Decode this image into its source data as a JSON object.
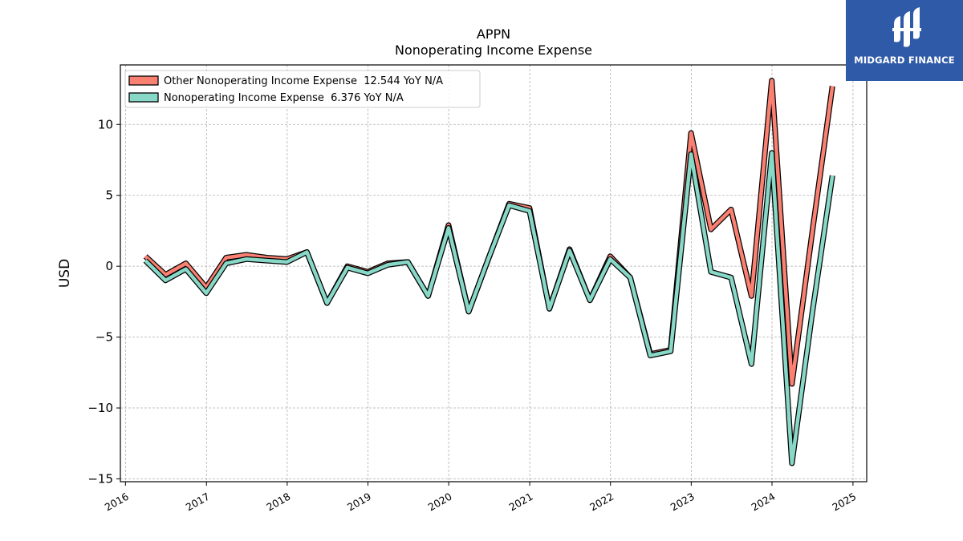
{
  "brand": {
    "name": "MIDGARD FINANCE",
    "bg_color": "#2f5aa8"
  },
  "chart_data": {
    "type": "line",
    "title": "APPN",
    "subtitle": "Nonoperating Income Expense",
    "xlabel": "",
    "ylabel": "USD",
    "ylim": [
      -15.2,
      14.2
    ],
    "xlim": [
      "2015-12-09",
      "2025-03-04"
    ],
    "y_ticks": [
      -15,
      -10,
      -5,
      0,
      5,
      10
    ],
    "y_tick_labels": [
      "−15",
      "−10",
      "−5",
      "0",
      "5",
      "10"
    ],
    "x_ticks": [
      "2016-01-01",
      "2017-01-01",
      "2018-01-01",
      "2019-01-01",
      "2020-01-01",
      "2021-01-01",
      "2022-01-01",
      "2023-01-01",
      "2024-01-01",
      "2025-01-01"
    ],
    "x_tick_labels": [
      "2016",
      "2017",
      "2018",
      "2019",
      "2020",
      "2021",
      "2022",
      "2023",
      "2024",
      "2025"
    ],
    "grid": true,
    "legend_position": "top-left",
    "x": [
      "2016-03-31",
      "2016-06-30",
      "2016-09-30",
      "2016-12-31",
      "2017-03-31",
      "2017-06-30",
      "2017-09-30",
      "2017-12-31",
      "2018-03-31",
      "2018-06-30",
      "2018-09-30",
      "2018-12-31",
      "2019-03-31",
      "2019-06-30",
      "2019-09-30",
      "2019-12-31",
      "2020-03-31",
      "2020-06-30",
      "2020-09-30",
      "2020-12-31",
      "2021-03-31",
      "2021-06-30",
      "2021-09-30",
      "2021-12-31",
      "2022-03-31",
      "2022-06-30",
      "2022-09-30",
      "2022-12-31",
      "2023-03-31",
      "2023-06-30",
      "2023-09-30",
      "2023-12-31",
      "2024-03-31",
      "2024-06-30",
      "2024-09-30"
    ],
    "series": [
      {
        "name": "Other Nonoperating Income Expense",
        "label": "Other Nonoperating Income Expense  12.544 YoY N/A",
        "color": "#fa8072",
        "values": [
          0.7,
          -0.6,
          0.2,
          -1.5,
          0.6,
          0.8,
          0.6,
          0.5,
          1.0,
          -2.6,
          0.0,
          -0.4,
          0.2,
          0.3,
          -2.1,
          2.9,
          -3.2,
          0.6,
          4.4,
          4.1,
          -3.0,
          1.2,
          -2.4,
          0.7,
          -0.8,
          -6.2,
          -5.9,
          9.4,
          2.6,
          4.0,
          -2.1,
          13.1,
          -8.3,
          2.3,
          12.7
        ]
      },
      {
        "name": "Nonoperating Income Expense",
        "label": "Nonoperating Income Expense  6.376 YoY N/A",
        "color": "#88d8c8",
        "values": [
          0.4,
          -1.0,
          -0.2,
          -1.9,
          0.2,
          0.5,
          0.4,
          0.3,
          1.0,
          -2.6,
          -0.1,
          -0.5,
          0.1,
          0.3,
          -2.1,
          2.7,
          -3.2,
          0.6,
          4.3,
          3.9,
          -3.0,
          1.1,
          -2.4,
          0.5,
          -0.8,
          -6.3,
          -6.0,
          7.9,
          -0.4,
          -0.8,
          -6.9,
          8.0,
          -13.9,
          -3.4,
          6.4
        ]
      }
    ]
  }
}
